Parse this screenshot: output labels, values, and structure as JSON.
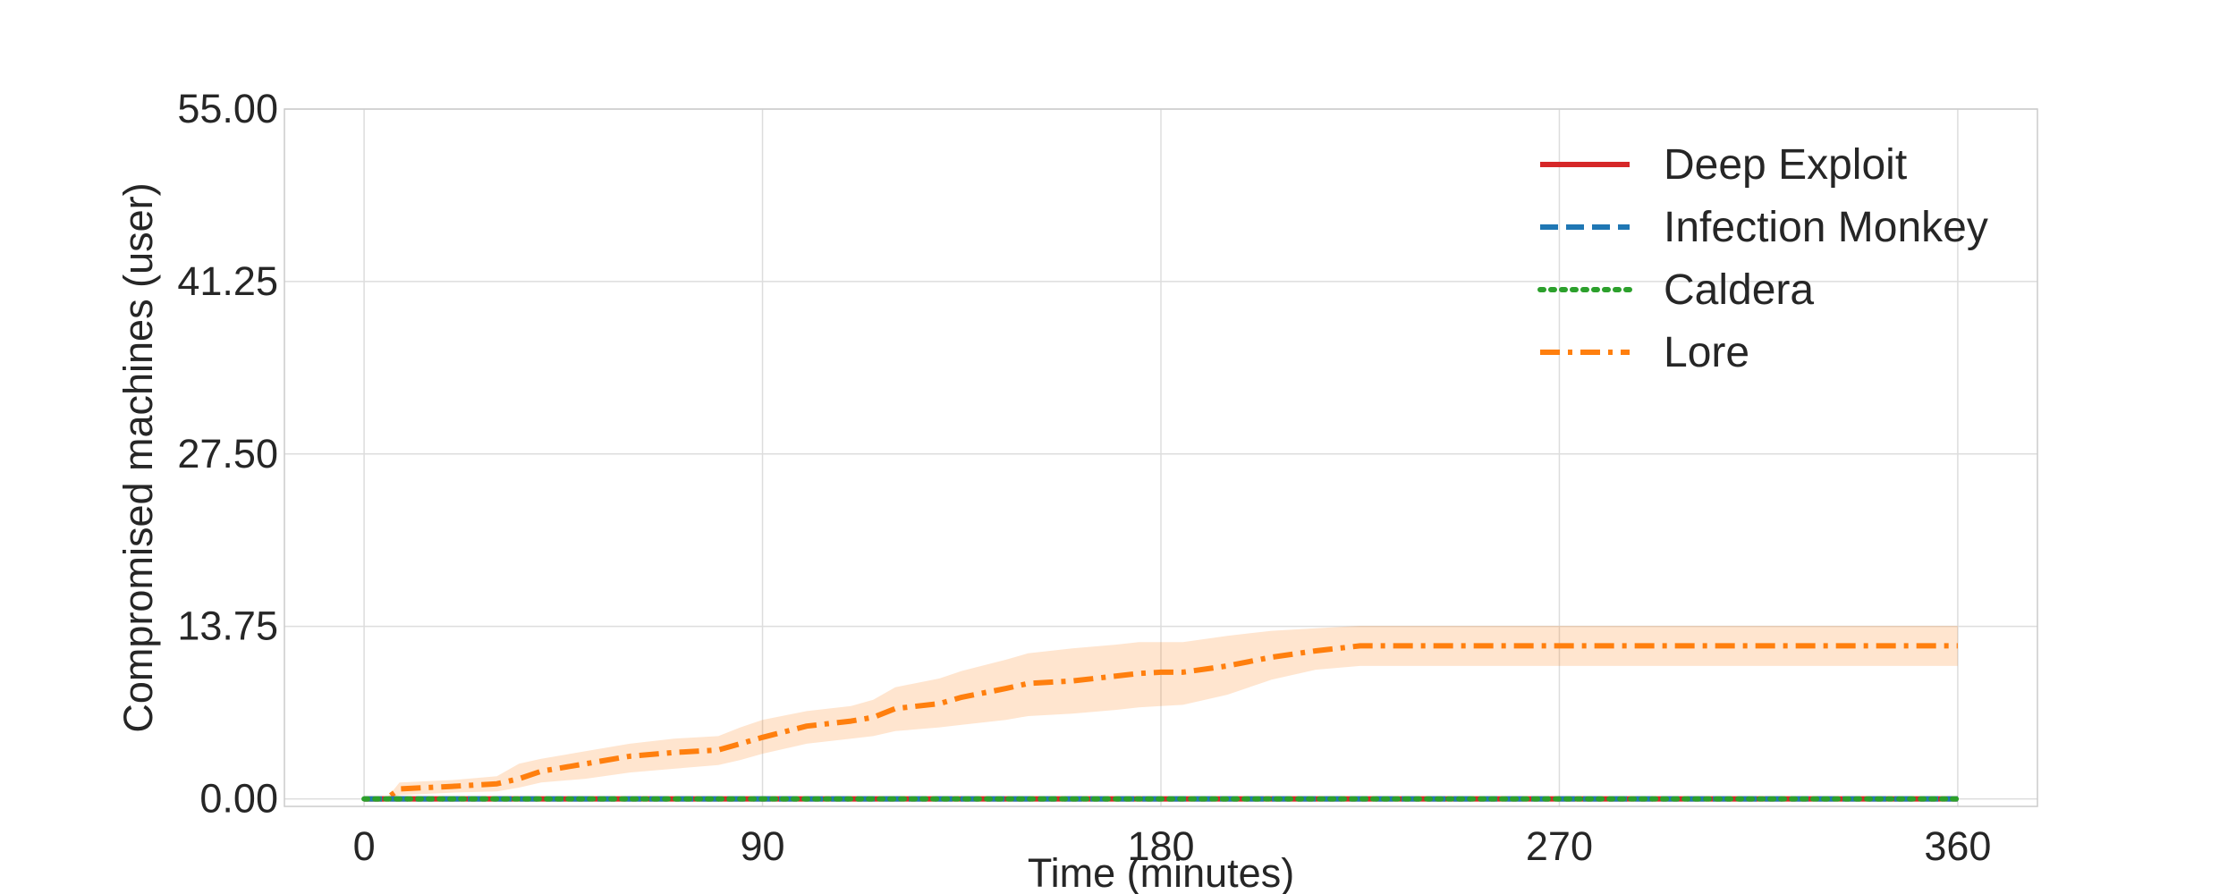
{
  "chart_data": {
    "type": "line",
    "title": "",
    "xlabel": "Time (minutes)",
    "ylabel": "Compromised machines (user)",
    "xlim": [
      -18,
      378
    ],
    "ylim": [
      -0.6,
      55
    ],
    "x_ticks": [
      0,
      90,
      180,
      270,
      360
    ],
    "x_tick_labels": [
      "0",
      "90",
      "180",
      "270",
      "360"
    ],
    "y_ticks": [
      0,
      13.75,
      27.5,
      41.25,
      55
    ],
    "y_tick_labels": [
      "0.00",
      "13.75",
      "27.50",
      "41.25",
      "55.00"
    ],
    "grid": true,
    "legend_position": "top-right",
    "series": [
      {
        "name": "Deep Exploit",
        "color": "#d62728",
        "style": "solid",
        "x": [
          0,
          360
        ],
        "y": [
          0,
          0
        ]
      },
      {
        "name": "Infection Monkey",
        "color": "#1f77b4",
        "style": "dashed",
        "x": [
          0,
          360
        ],
        "y": [
          0,
          0
        ]
      },
      {
        "name": "Caldera",
        "color": "#2ca02c",
        "style": "dotted",
        "x": [
          0,
          360
        ],
        "y": [
          0,
          0
        ]
      },
      {
        "name": "Lore",
        "color": "#ff7f0e",
        "style": "dashdot",
        "x": [
          0,
          5,
          8,
          20,
          30,
          35,
          40,
          50,
          60,
          70,
          80,
          85,
          90,
          100,
          110,
          115,
          120,
          130,
          135,
          145,
          150,
          160,
          170,
          175,
          180,
          185,
          195,
          205,
          215,
          225,
          235,
          250,
          270,
          300,
          330,
          360
        ],
        "y": [
          0,
          0,
          0.8,
          1.0,
          1.2,
          1.6,
          2.2,
          2.8,
          3.4,
          3.7,
          3.9,
          4.4,
          4.9,
          5.8,
          6.2,
          6.5,
          7.2,
          7.6,
          8.1,
          8.8,
          9.2,
          9.4,
          9.8,
          10.0,
          10.1,
          10.1,
          10.6,
          11.3,
          11.8,
          12.2,
          12.2,
          12.2,
          12.2,
          12.2,
          12.2,
          12.2
        ],
        "band_lower": [
          0,
          0,
          0.3,
          0.5,
          0.6,
          0.9,
          1.3,
          1.6,
          2.1,
          2.4,
          2.7,
          3.1,
          3.6,
          4.4,
          4.8,
          5.0,
          5.4,
          5.7,
          5.9,
          6.3,
          6.6,
          6.8,
          7.1,
          7.3,
          7.4,
          7.5,
          8.3,
          9.5,
          10.3,
          10.6,
          10.6,
          10.6,
          10.6,
          10.6,
          10.6,
          10.6
        ],
        "band_upper": [
          0,
          0,
          1.3,
          1.5,
          1.8,
          2.8,
          3.2,
          3.8,
          4.4,
          4.8,
          5.0,
          5.7,
          6.3,
          7.0,
          7.4,
          7.9,
          8.9,
          9.6,
          10.2,
          11.1,
          11.6,
          12.0,
          12.3,
          12.5,
          12.5,
          12.5,
          13.0,
          13.4,
          13.6,
          13.8,
          13.8,
          13.8,
          13.8,
          13.8,
          13.8,
          13.8
        ]
      }
    ]
  }
}
